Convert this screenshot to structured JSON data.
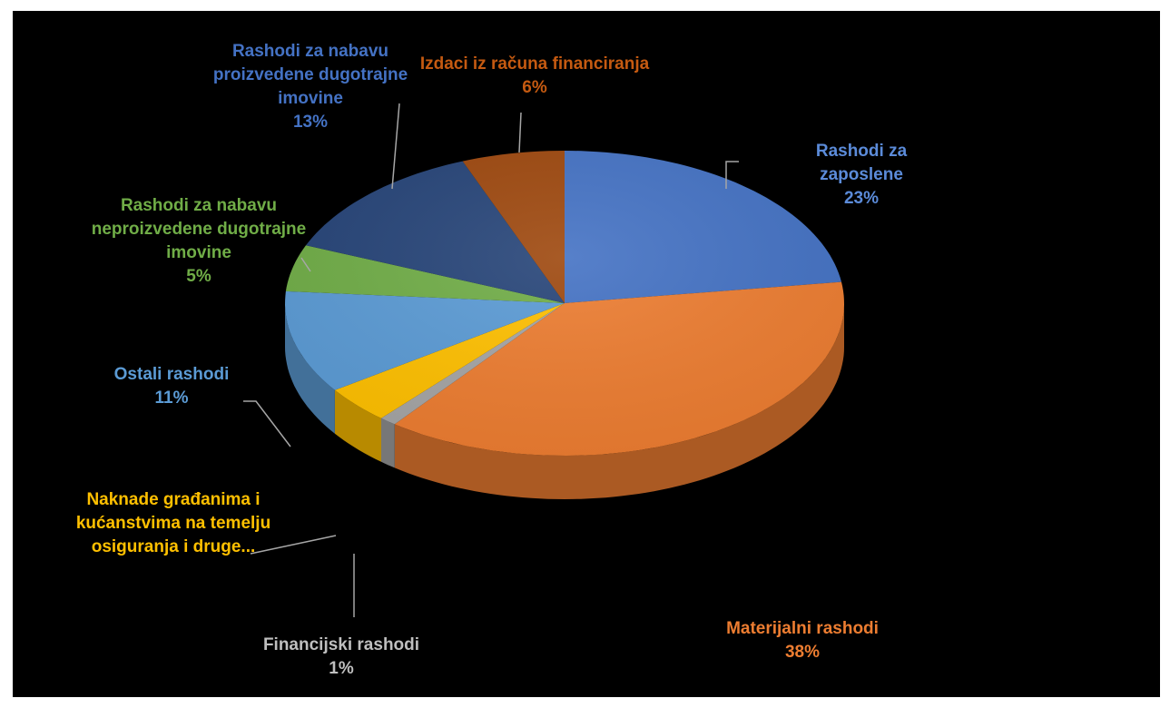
{
  "chart_data": {
    "type": "pie",
    "style": "3d",
    "legend": "none",
    "slices": [
      {
        "name": "Rashodi za zaposlene",
        "percent_label": "23%",
        "value": 23,
        "color": "#4472c4",
        "label_color": "#5b8bd9"
      },
      {
        "name": "Materijalni rashodi",
        "percent_label": "38%",
        "value": 38,
        "color": "#ed7d31",
        "label_color": "#ed7d31"
      },
      {
        "name": "Financijski rashodi",
        "percent_label": "1%",
        "value": 1,
        "color": "#a5a5a5",
        "label_color": "#bfbfbf"
      },
      {
        "name": "Naknade građanima i kućanstvima na temelju osiguranja i druge...",
        "display_lines": "Naknade građanima i\nkućanstvima na temelju\nosiguranja i druge...",
        "percent_label": "",
        "value": 4,
        "color": "#ffc000",
        "label_color": "#ffc000"
      },
      {
        "name": "Ostali rashodi",
        "percent_label": "11%",
        "value": 11,
        "color": "#5b9bd5",
        "label_color": "#5b9bd5"
      },
      {
        "name": "Rashodi za nabavu neproizvedene dugotrajne imovine",
        "display_lines": "Rashodi za nabavu\nneproizvedene dugotrajne\nimovine",
        "percent_label": "5%",
        "value": 5,
        "color": "#70ad47",
        "label_color": "#70ad47"
      },
      {
        "name": "Rashodi za nabavu proizvedene dugotrajne imovine",
        "display_lines": "Rashodi za nabavu\nproizvedene dugotrajne\nimovine",
        "percent_label": "13%",
        "value": 13,
        "color": "#264478",
        "label_color": "#4472c4"
      },
      {
        "name": "Izdaci iz računa financiranja",
        "percent_label": "6%",
        "value": 6,
        "color": "#9e480e",
        "label_color": "#c55a11"
      }
    ]
  }
}
